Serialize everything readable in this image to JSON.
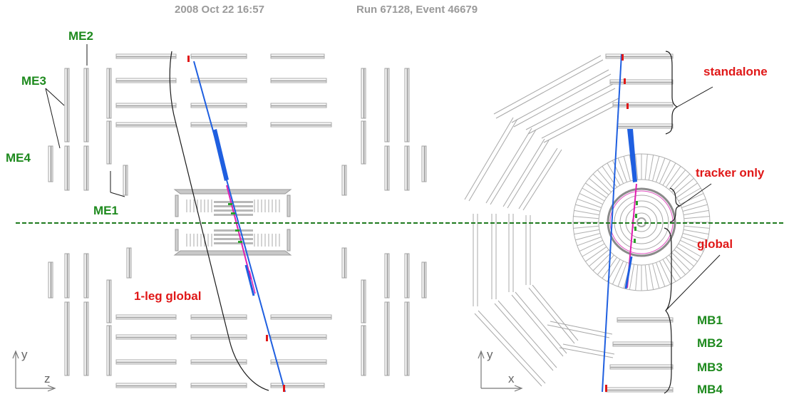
{
  "header": {
    "timestamp": "2008 Oct 22 16:57",
    "run_event": "Run 67128,  Event 46679"
  },
  "left_view": {
    "endcap_labels": {
      "me1": "ME1",
      "me2": "ME2",
      "me3": "ME3",
      "me4": "ME4"
    },
    "track_label": "1-leg global",
    "axis": {
      "vertical": "y",
      "horizontal": "z"
    }
  },
  "right_view": {
    "track_labels": {
      "standalone": "standalone",
      "tracker_only": "tracker only",
      "global": "global"
    },
    "barrel_labels": {
      "mb1": "MB1",
      "mb2": "MB2",
      "mb3": "MB3",
      "mb4": "MB4"
    },
    "axis": {
      "vertical": "y",
      "horizontal": "x"
    }
  },
  "colors": {
    "muon_track": "#1f5fe0",
    "inner_track": "#e020b0",
    "hit": "#e01818",
    "detector": "#a8a8a8",
    "beam_line": "#1e7a1e",
    "label_green": "#1e8a1e",
    "label_red": "#e01818"
  }
}
